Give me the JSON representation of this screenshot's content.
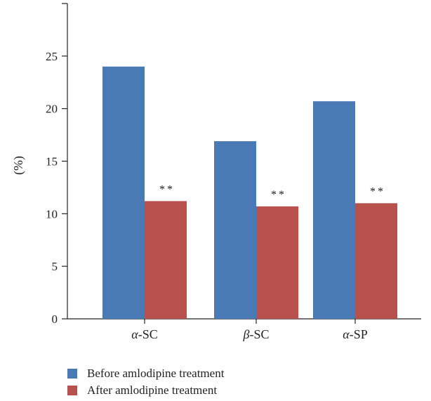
{
  "chart_data": {
    "type": "bar",
    "categories": [
      "α-SC",
      "β-SC",
      "α-SP"
    ],
    "category_display": [
      {
        "greek": "α",
        "rest": "-SC"
      },
      {
        "greek": "β",
        "rest": "-SC"
      },
      {
        "greek": "α",
        "rest": "-SP"
      }
    ],
    "series": [
      {
        "name": "Before amlodipine treatment",
        "values": [
          24.0,
          16.9,
          20.7
        ],
        "color": "#4a7ab5"
      },
      {
        "name": "After amlodipine treatment",
        "values": [
          11.2,
          10.7,
          11.0
        ],
        "color": "#b8504e"
      }
    ],
    "annotations": [
      "**",
      "**",
      "**"
    ],
    "ylabel": "(%)",
    "xlabel": "",
    "title": "",
    "ylim": [
      0,
      30
    ],
    "yticks": [
      0,
      5,
      10,
      15,
      20,
      25
    ],
    "grid": false,
    "legend_position": "bottom-left"
  }
}
